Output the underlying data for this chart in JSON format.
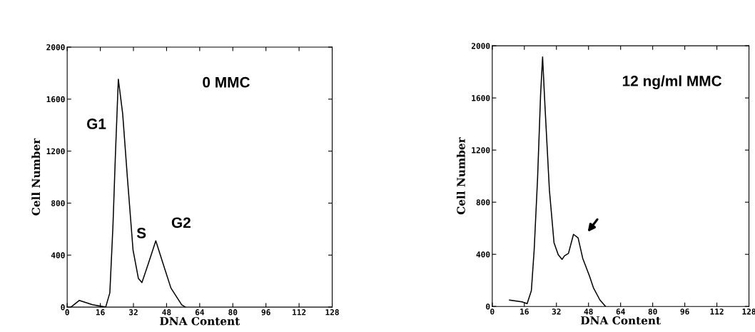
{
  "chart_data": [
    {
      "type": "line",
      "title": "0 MMC",
      "xlabel": "DNA Content",
      "ylabel": "Cell Number",
      "series": [
        {
          "color": "#000000",
          "x": [
            1.8,
            5.8,
            12.2,
            18.6,
            20.6,
            22.1,
            23.3,
            24.7,
            26.8,
            29.1,
            31.8,
            34.4,
            36.1,
            39.1,
            42.8,
            46.0,
            50.1,
            55.3,
            57.1
          ],
          "values": [
            0,
            51,
            18,
            0,
            110,
            624,
            1175,
            1753,
            1487,
            991,
            440,
            220,
            189,
            330,
            510,
            349,
            147,
            18,
            0
          ]
        }
      ],
      "xlim": [
        0,
        128
      ],
      "xticks": [
        0,
        16,
        32,
        48,
        64,
        80,
        96,
        112,
        128
      ],
      "ylim": [
        0,
        2000
      ],
      "yticks": [
        0,
        400,
        800,
        1200,
        1600,
        2000
      ],
      "annotations": [
        "G1",
        "S",
        "G2"
      ],
      "grid": false,
      "legend": false
    },
    {
      "type": "line",
      "title": "12 ng/ml MMC",
      "xlabel": "DNA Content",
      "ylabel": "Cell Number",
      "series": [
        {
          "color": "#000000",
          "x": [
            8.6,
            14.8,
            17.4,
            19.5,
            20.9,
            22.6,
            24.1,
            25.1,
            26.3,
            28.5,
            30.8,
            32.9,
            34.8,
            36.0,
            38.0,
            40.5,
            42.8,
            45.1,
            48.5,
            50.5,
            53.7,
            56.5
          ],
          "values": [
            49,
            35,
            22,
            122,
            434,
            984,
            1625,
            1914,
            1533,
            892,
            489,
            397,
            361,
            388,
            407,
            553,
            526,
            370,
            232,
            141,
            49,
            0
          ]
        }
      ],
      "xlim": [
        0,
        128
      ],
      "xticks": [
        0,
        16,
        32,
        48,
        64,
        80,
        96,
        112,
        128
      ],
      "ylim": [
        0,
        2000
      ],
      "yticks": [
        0,
        400,
        800,
        1200,
        1600,
        2000
      ],
      "grid": false,
      "legend": false
    }
  ]
}
